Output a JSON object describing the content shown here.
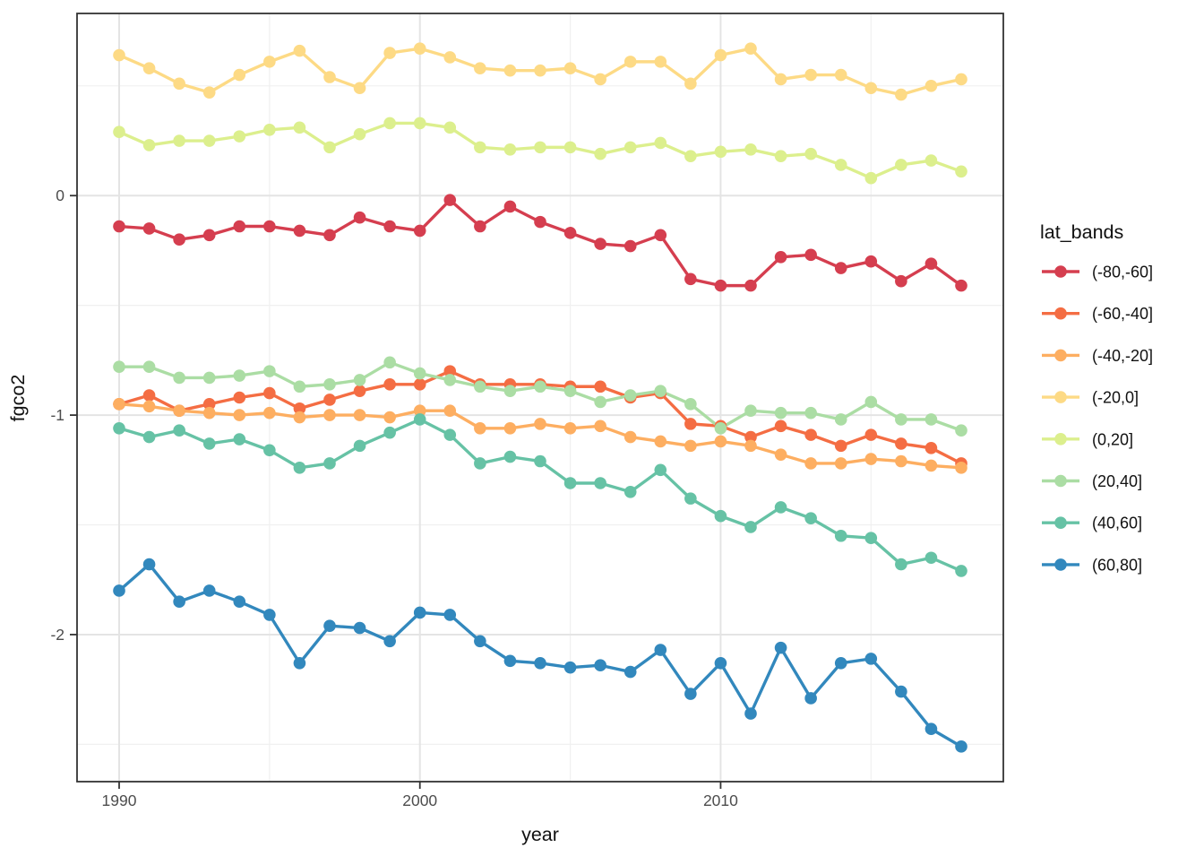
{
  "chart_data": {
    "type": "line",
    "title": "",
    "xlabel": "year",
    "ylabel": "fgco2",
    "legend_title": "lat_bands",
    "x": [
      1990,
      1991,
      1992,
      1993,
      1994,
      1995,
      1996,
      1997,
      1998,
      1999,
      2000,
      2001,
      2002,
      2003,
      2004,
      2005,
      2006,
      2007,
      2008,
      2009,
      2010,
      2011,
      2012,
      2013,
      2014,
      2015,
      2016,
      2017,
      2018
    ],
    "axes": {
      "xlim": [
        1988.6,
        2019.4
      ],
      "ylim": [
        -2.67,
        0.83
      ],
      "x_ticks": [
        {
          "label": "1990",
          "value": 1990
        },
        {
          "label": "2000",
          "value": 2000
        },
        {
          "label": "2010",
          "value": 2010
        }
      ],
      "y_ticks": [
        {
          "label": "0",
          "value": 0
        },
        {
          "label": "-1",
          "value": -1
        },
        {
          "label": "-2",
          "value": -2
        }
      ],
      "x_minor": [
        1995,
        2005,
        2015
      ],
      "y_minor": [
        0.5,
        -0.5,
        -1.5,
        -2.5
      ],
      "grid": true,
      "legend_position": "right"
    },
    "series": [
      {
        "name": "(-80,-60]",
        "color": "#D53E4F",
        "values": [
          -0.14,
          -0.15,
          -0.2,
          -0.18,
          -0.14,
          -0.14,
          -0.16,
          -0.18,
          -0.1,
          -0.14,
          -0.16,
          -0.02,
          -0.14,
          -0.05,
          -0.12,
          -0.17,
          -0.22,
          -0.23,
          -0.18,
          -0.38,
          -0.41,
          -0.41,
          -0.28,
          -0.27,
          -0.33,
          -0.3,
          -0.39,
          -0.31,
          -0.41
        ]
      },
      {
        "name": "(-60,-40]",
        "color": "#F46D43",
        "values": [
          -0.95,
          -0.91,
          -0.98,
          -0.95,
          -0.92,
          -0.9,
          -0.97,
          -0.93,
          -0.89,
          -0.86,
          -0.86,
          -0.8,
          -0.86,
          -0.86,
          -0.86,
          -0.87,
          -0.87,
          -0.92,
          -0.9,
          -1.04,
          -1.05,
          -1.1,
          -1.05,
          -1.09,
          -1.14,
          -1.09,
          -1.13,
          -1.15,
          -1.22
        ]
      },
      {
        "name": "(-40,-20]",
        "color": "#FDAE61",
        "values": [
          -0.95,
          -0.96,
          -0.98,
          -0.99,
          -1.0,
          -0.99,
          -1.01,
          -1.0,
          -1.0,
          -1.01,
          -0.98,
          -0.98,
          -1.06,
          -1.06,
          -1.04,
          -1.06,
          -1.05,
          -1.1,
          -1.12,
          -1.14,
          -1.12,
          -1.14,
          -1.18,
          -1.22,
          -1.22,
          -1.2,
          -1.21,
          -1.23,
          -1.24
        ]
      },
      {
        "name": "(-20,0]",
        "color": "#FDDA85",
        "values": [
          0.64,
          0.58,
          0.51,
          0.47,
          0.55,
          0.61,
          0.66,
          0.54,
          0.49,
          0.65,
          0.67,
          0.63,
          0.58,
          0.57,
          0.57,
          0.58,
          0.53,
          0.61,
          0.61,
          0.51,
          0.64,
          0.67,
          0.53,
          0.55,
          0.55,
          0.49,
          0.46,
          0.5,
          0.53
        ]
      },
      {
        "name": "(0,20]",
        "color": "#DCEF8D",
        "values": [
          0.29,
          0.23,
          0.25,
          0.25,
          0.27,
          0.3,
          0.31,
          0.22,
          0.28,
          0.33,
          0.33,
          0.31,
          0.22,
          0.21,
          0.22,
          0.22,
          0.19,
          0.22,
          0.24,
          0.18,
          0.2,
          0.21,
          0.18,
          0.19,
          0.14,
          0.08,
          0.14,
          0.16,
          0.11
        ]
      },
      {
        "name": "(20,40]",
        "color": "#ABDDA4",
        "values": [
          -0.78,
          -0.78,
          -0.83,
          -0.83,
          -0.82,
          -0.8,
          -0.87,
          -0.86,
          -0.84,
          -0.76,
          -0.81,
          -0.84,
          -0.87,
          -0.89,
          -0.87,
          -0.89,
          -0.94,
          -0.91,
          -0.89,
          -0.95,
          -1.06,
          -0.98,
          -0.99,
          -0.99,
          -1.02,
          -0.94,
          -1.02,
          -1.02,
          -1.07
        ]
      },
      {
        "name": "(40,60]",
        "color": "#66C2A5",
        "values": [
          -1.06,
          -1.1,
          -1.07,
          -1.13,
          -1.11,
          -1.16,
          -1.24,
          -1.22,
          -1.14,
          -1.08,
          -1.02,
          -1.09,
          -1.22,
          -1.19,
          -1.21,
          -1.31,
          -1.31,
          -1.35,
          -1.25,
          -1.38,
          -1.46,
          -1.51,
          -1.42,
          -1.47,
          -1.55,
          -1.56,
          -1.68,
          -1.65,
          -1.71
        ]
      },
      {
        "name": "(60,80]",
        "color": "#3288BD",
        "values": [
          -1.8,
          -1.68,
          -1.85,
          -1.8,
          -1.85,
          -1.91,
          -2.13,
          -1.96,
          -1.97,
          -2.03,
          -1.9,
          -1.91,
          -2.03,
          -2.12,
          -2.13,
          -2.15,
          -2.14,
          -2.17,
          -2.07,
          -2.27,
          -2.13,
          -2.36,
          -2.06,
          -2.29,
          -2.13,
          -2.11,
          -2.26,
          -2.43,
          -2.51
        ]
      }
    ],
    "style": {
      "panel_border_color": "#333333",
      "grid_major_color": "#E4E4E4",
      "grid_minor_color": "#F0F0F0",
      "background": "#FFFFFF"
    }
  }
}
